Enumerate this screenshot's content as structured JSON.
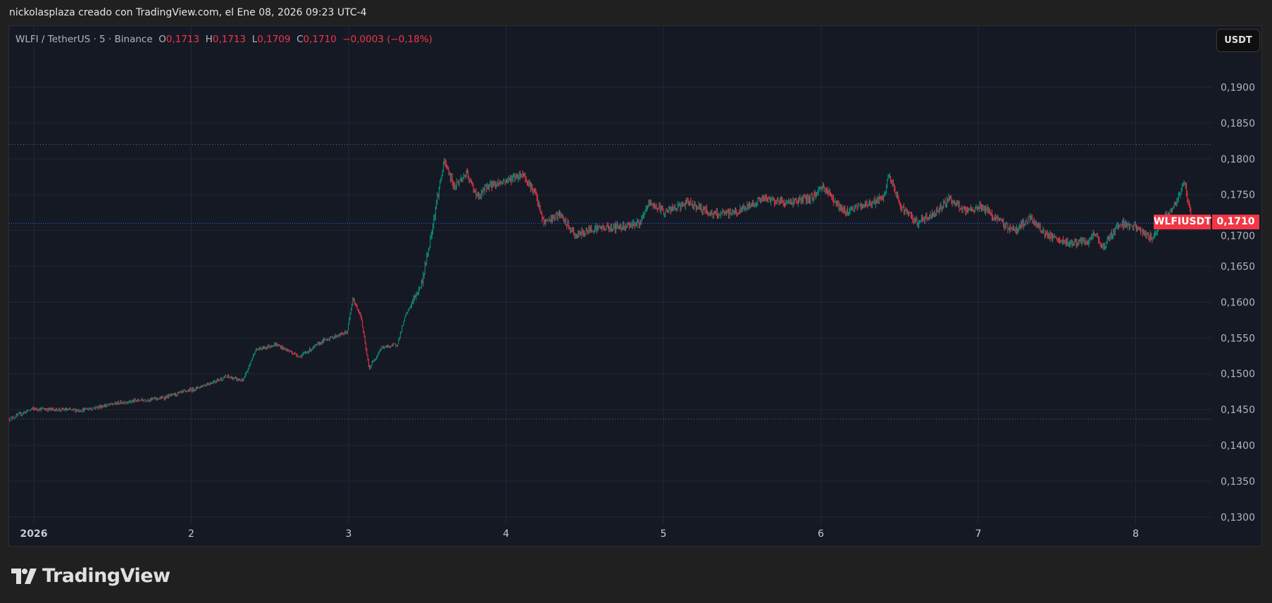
{
  "caption": "nickolasplaza creado con TradingView.com, el Ene 08, 2026 09:23 UTC-4",
  "legend": {
    "symbol": "WLFI / TetherUS · 5 · Binance",
    "o_label": "O",
    "o_value": "0,1713",
    "h_label": "H",
    "h_value": "0,1713",
    "l_label": "L",
    "l_value": "0,1709",
    "c_label": "C",
    "c_value": "0,1710",
    "change": "−0,0003 (−0,18%)"
  },
  "currency_button": "USDT",
  "price_tag": {
    "symbol": "WLFIUSDT",
    "value": "0,1710"
  },
  "logo_text": "TradingView",
  "colors": {
    "up": "#089981",
    "down": "#f23645",
    "background": "#151924",
    "grid": "#232733",
    "last_line": "#2962ff"
  },
  "chart_data": {
    "type": "candlestick",
    "title": "WLFI / TetherUS · 5 · Binance",
    "interval_minutes": 5,
    "xlabel": "",
    "ylabel": "USDT",
    "x_ticks": [
      {
        "day": 1,
        "label": "2026"
      },
      {
        "day": 2,
        "label": "2"
      },
      {
        "day": 3,
        "label": "3"
      },
      {
        "day": 4,
        "label": "4"
      },
      {
        "day": 5,
        "label": "5"
      },
      {
        "day": 6,
        "label": "6"
      },
      {
        "day": 7,
        "label": "7"
      },
      {
        "day": 8,
        "label": "8"
      }
    ],
    "y_ticks": [
      "0,1900",
      "0,1850",
      "0,1800",
      "0,1750",
      "0,1700",
      "0,1650",
      "0,1600",
      "0,1550",
      "0,1500",
      "0,1450",
      "0,1400",
      "0,1350",
      "0,1300"
    ],
    "y_tick_values": [
      0.19,
      0.185,
      0.18,
      0.175,
      0.17,
      0.165,
      0.16,
      0.155,
      0.15,
      0.145,
      0.14,
      0.135,
      0.13
    ],
    "ylim": [
      0.1288,
      0.196
    ],
    "xlim": [
      0.84,
      8.5
    ],
    "high_line": 0.182,
    "low_line": 0.1437,
    "last_price": 0.171,
    "grid": true,
    "price_path_day": [
      0.845,
      0.99,
      1.3,
      1.557,
      1.814,
      2.021,
      2.227,
      2.33,
      2.407,
      2.536,
      2.691,
      2.845,
      2.99,
      3.026,
      3.077,
      3.129,
      3.206,
      3.309,
      3.361,
      3.464,
      3.515,
      3.567,
      3.608,
      3.67,
      3.747,
      3.825,
      3.876,
      3.979,
      4.108,
      4.186,
      4.237,
      4.34,
      4.443,
      4.546,
      4.701,
      4.856,
      4.907,
      5.01,
      5.165,
      5.32,
      5.474,
      5.629,
      5.784,
      5.938,
      6.015,
      6.144,
      6.402,
      6.428,
      6.505,
      6.608,
      6.711,
      6.814,
      6.918,
      7.021,
      7.124,
      7.227,
      7.33,
      7.433,
      7.536,
      7.691,
      7.742,
      7.794,
      7.897,
      8.0,
      8.103,
      8.155,
      8.258,
      8.309,
      8.361
    ],
    "price_path_close": [
      0.1437,
      0.1451,
      0.1449,
      0.146,
      0.1466,
      0.1479,
      0.1496,
      0.149,
      0.1533,
      0.1541,
      0.1524,
      0.1547,
      0.1558,
      0.1604,
      0.1581,
      0.1507,
      0.1536,
      0.1541,
      0.1581,
      0.1626,
      0.1683,
      0.1751,
      0.1796,
      0.1762,
      0.1779,
      0.1745,
      0.1762,
      0.1768,
      0.1779,
      0.1751,
      0.1711,
      0.1722,
      0.1692,
      0.1703,
      0.1705,
      0.1711,
      0.1739,
      0.1726,
      0.1739,
      0.1722,
      0.1726,
      0.1745,
      0.1739,
      0.1745,
      0.1762,
      0.1726,
      0.1745,
      0.1779,
      0.1734,
      0.1711,
      0.1722,
      0.1745,
      0.1726,
      0.1734,
      0.1714,
      0.17,
      0.1717,
      0.1694,
      0.1683,
      0.1683,
      0.1694,
      0.1677,
      0.1711,
      0.1705,
      0.1688,
      0.1711,
      0.1739,
      0.1768,
      0.171
    ]
  }
}
